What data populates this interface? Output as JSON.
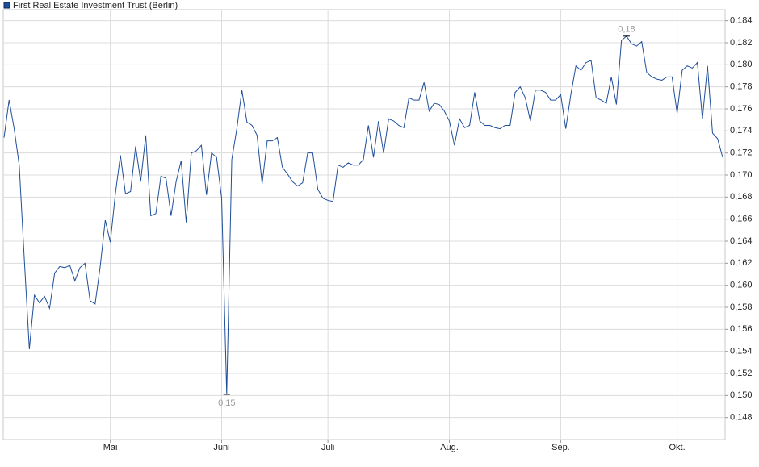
{
  "chart_data": {
    "type": "line",
    "categories": [
      null,
      null,
      null,
      null,
      null,
      null,
      null,
      null,
      null,
      null,
      null,
      null,
      null,
      null,
      null,
      null,
      null,
      null,
      null,
      null,
      null,
      "Mai",
      null,
      null,
      null,
      null,
      null,
      null,
      null,
      null,
      null,
      null,
      null,
      null,
      null,
      null,
      null,
      null,
      null,
      null,
      null,
      null,
      null,
      "Juni",
      null,
      null,
      null,
      null,
      null,
      null,
      null,
      null,
      null,
      null,
      null,
      null,
      null,
      null,
      null,
      null,
      null,
      null,
      null,
      null,
      "Juli",
      null,
      null,
      null,
      null,
      null,
      null,
      null,
      null,
      null,
      null,
      null,
      null,
      null,
      null,
      null,
      null,
      null,
      null,
      null,
      null,
      null,
      null,
      null,
      "Aug.",
      null,
      null,
      null,
      null,
      null,
      null,
      null,
      null,
      null,
      null,
      null,
      null,
      null,
      null,
      null,
      null,
      null,
      null,
      null,
      null,
      null,
      "Sep.",
      null,
      null,
      null,
      null,
      null,
      null,
      null,
      null,
      null,
      null,
      null,
      null,
      null,
      null,
      null,
      null,
      null,
      null,
      null,
      null,
      null,
      null,
      "Okt.",
      null,
      null,
      null,
      null,
      null,
      null,
      null,
      null,
      null
    ],
    "series": [
      {
        "name": "First Real Estate Investment Trust (Berlin)",
        "color": "#1f4e9a",
        "values": [
          0.1734,
          0.1768,
          0.1742,
          0.1709,
          0.1624,
          0.1542,
          0.1591,
          0.1584,
          0.159,
          0.1579,
          0.1611,
          0.1617,
          0.1616,
          0.1618,
          0.1604,
          0.1616,
          0.162,
          0.1586,
          0.1583,
          0.1617,
          0.1659,
          0.1639,
          0.1683,
          0.1718,
          0.1683,
          0.1685,
          0.1726,
          0.1694,
          0.1736,
          0.1663,
          0.1665,
          0.1699,
          0.1697,
          0.1663,
          0.1694,
          0.1713,
          0.1657,
          0.172,
          0.1722,
          0.1727,
          0.1682,
          0.172,
          0.1716,
          0.1679,
          0.1501,
          0.1714,
          0.1742,
          0.1777,
          0.1748,
          0.1745,
          0.1736,
          0.1692,
          0.1731,
          0.1731,
          0.1734,
          0.1707,
          0.1701,
          0.1694,
          0.169,
          0.1693,
          0.172,
          0.172,
          0.1687,
          0.1679,
          0.1677,
          0.1676,
          0.1709,
          0.1707,
          0.1711,
          0.1709,
          0.1709,
          0.1714,
          0.1745,
          0.1716,
          0.1749,
          0.172,
          0.1751,
          0.1749,
          0.1745,
          0.1743,
          0.177,
          0.1768,
          0.1768,
          0.1784,
          0.1758,
          0.1765,
          0.1764,
          0.1758,
          0.1749,
          0.1727,
          0.1751,
          0.1743,
          0.1745,
          0.1775,
          0.1749,
          0.1745,
          0.1745,
          0.1743,
          0.1742,
          0.1745,
          0.1745,
          0.1775,
          0.178,
          0.177,
          0.1749,
          0.1777,
          0.1777,
          0.1775,
          0.1768,
          0.1768,
          0.1773,
          0.1742,
          0.1773,
          0.1799,
          0.1795,
          0.1802,
          0.1804,
          0.177,
          0.1768,
          0.1765,
          0.1789,
          0.1764,
          0.1822,
          0.1826,
          0.1819,
          0.1817,
          0.1821,
          0.1793,
          0.1789,
          0.1787,
          0.1786,
          0.1789,
          0.1789,
          0.1756,
          0.1795,
          0.1799,
          0.1797,
          0.1802,
          0.1751,
          0.1799,
          0.1738,
          0.1733,
          0.1716
        ]
      }
    ],
    "annotations": {
      "min": "0,15",
      "max": "0,18"
    },
    "ylim": [
      0.146,
      0.185
    ],
    "yticks": [
      {
        "value": 0.148,
        "label": "0,148"
      },
      {
        "value": 0.15,
        "label": "0,150"
      },
      {
        "value": 0.152,
        "label": "0,152"
      },
      {
        "value": 0.154,
        "label": "0,154"
      },
      {
        "value": 0.156,
        "label": "0,156"
      },
      {
        "value": 0.158,
        "label": "0,158"
      },
      {
        "value": 0.16,
        "label": "0,160"
      },
      {
        "value": 0.162,
        "label": "0,162"
      },
      {
        "value": 0.164,
        "label": "0,164"
      },
      {
        "value": 0.166,
        "label": "0,166"
      },
      {
        "value": 0.168,
        "label": "0,168"
      },
      {
        "value": 0.17,
        "label": "0,170"
      },
      {
        "value": 0.172,
        "label": "0,172"
      },
      {
        "value": 0.174,
        "label": "0,174"
      },
      {
        "value": 0.176,
        "label": "0,176"
      },
      {
        "value": 0.178,
        "label": "0,178"
      },
      {
        "value": 0.18,
        "label": "0,180"
      },
      {
        "value": 0.182,
        "label": "0,182"
      },
      {
        "value": 0.184,
        "label": "0,184"
      }
    ],
    "grid": true
  }
}
